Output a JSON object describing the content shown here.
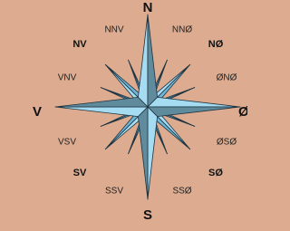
{
  "compass": {
    "labels": [
      "N",
      "NNØ",
      "NØ",
      "ØNØ",
      "Ø",
      "ØSØ",
      "SØ",
      "SSØ",
      "S",
      "SSV",
      "SV",
      "VSV",
      "V",
      "VNV",
      "NV",
      "NNV"
    ]
  }
}
